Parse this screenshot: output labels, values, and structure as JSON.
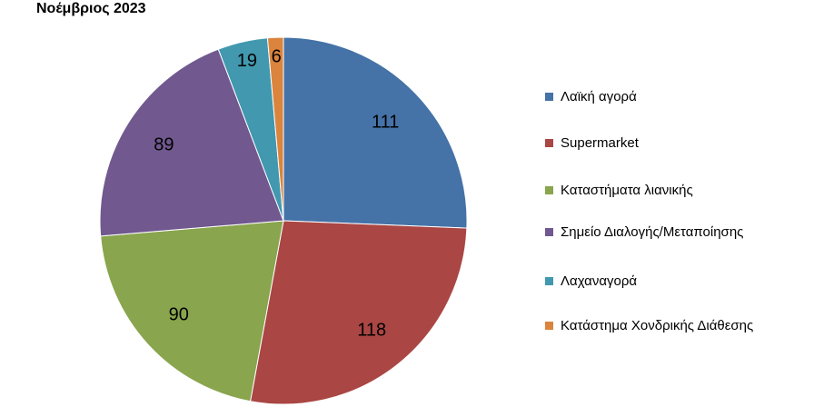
{
  "chart_data": {
    "type": "pie",
    "title": "Νοέμβριος 2023",
    "categories": [
      "Λαϊκή αγορά",
      "Supermarket",
      "Καταστήματα λιανικής",
      "Σημείο Διαλογής/Μεταποίησης",
      "Λαχαναγορά",
      "Κατάστημα Χονδρικής Διάθεσης"
    ],
    "values": [
      111,
      118,
      90,
      89,
      19,
      6
    ],
    "colors": [
      "#4572a7",
      "#aa4643",
      "#89a54e",
      "#71588f",
      "#4198af",
      "#db843d"
    ],
    "legend": "right"
  }
}
